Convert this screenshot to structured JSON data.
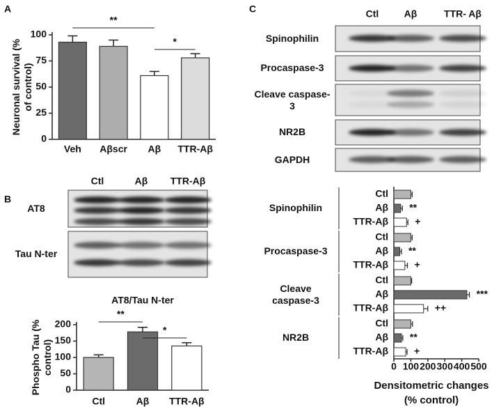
{
  "panels": [
    "A",
    "B",
    "C"
  ],
  "blots": [
    {
      "lanes": [
        "Ctl",
        "Aβ",
        "TTR-Aβ"
      ],
      "rows": [
        "AT8",
        "Tau N-ter"
      ]
    },
    {
      "lanes": [
        "Ctl",
        "Aβ",
        "TTR- Aβ"
      ],
      "rows": [
        "Spinophilin",
        "Procaspase-3",
        "Cleave caspase-3",
        "NR2B",
        "GAPDH"
      ]
    }
  ],
  "chart_data": [
    {
      "type": "bar",
      "ylabel": "Neuronal survival (% of control)",
      "categories": [
        "Veh",
        "Aβscr",
        "Aβ",
        "TTR-Aβ"
      ],
      "values": [
        93,
        89,
        61,
        78
      ],
      "errors": [
        6,
        6,
        4,
        4
      ],
      "colors": [
        "#6b6b6b",
        "#adadad",
        "#ffffff",
        "#dcdcdc"
      ],
      "ylim": [
        0,
        100
      ],
      "yticks": [
        0,
        25,
        50,
        75,
        100
      ],
      "annotations": [
        "**",
        "*"
      ]
    },
    {
      "type": "bar",
      "title": "AT8/Tau N-ter",
      "ylabel": "Phospho Tau (% control)",
      "categories": [
        "Ctl",
        "Aβ",
        "TTR-Aβ"
      ],
      "values": [
        100,
        178,
        135
      ],
      "errors": [
        8,
        14,
        10
      ],
      "colors": [
        "#b5b5b5",
        "#6b6b6b",
        "#ffffff"
      ],
      "ylim": [
        0,
        200
      ],
      "yticks": [
        0,
        50,
        100,
        150,
        200
      ],
      "annotations": [
        "**",
        "*"
      ]
    },
    {
      "type": "hbar",
      "xlabel": "Densitometric changes (% control)",
      "categories": [
        "Spinophilin",
        "Procaspase-3",
        "Cleave caspase-3",
        "NR2B"
      ],
      "series": [
        {
          "name": "Ctl",
          "color": "#b5b5b5",
          "values": [
            100,
            100,
            100,
            100
          ],
          "errors": [
            8,
            8,
            5,
            10
          ]
        },
        {
          "name": "Aβ",
          "color": "#6b6b6b",
          "values": [
            40,
            35,
            430,
            45
          ],
          "errors": [
            10,
            10,
            15,
            8
          ],
          "significance": [
            "**",
            "**",
            "***",
            "**"
          ]
        },
        {
          "name": "TTR-Aβ",
          "color": "#ffffff",
          "values": [
            75,
            65,
            175,
            70
          ],
          "errors": [
            8,
            15,
            25,
            8
          ],
          "significance": [
            "+",
            "+",
            "++",
            "+"
          ]
        }
      ],
      "xlim": [
        0,
        500
      ],
      "xticks": [
        0,
        100,
        200,
        300,
        400,
        500
      ]
    }
  ]
}
